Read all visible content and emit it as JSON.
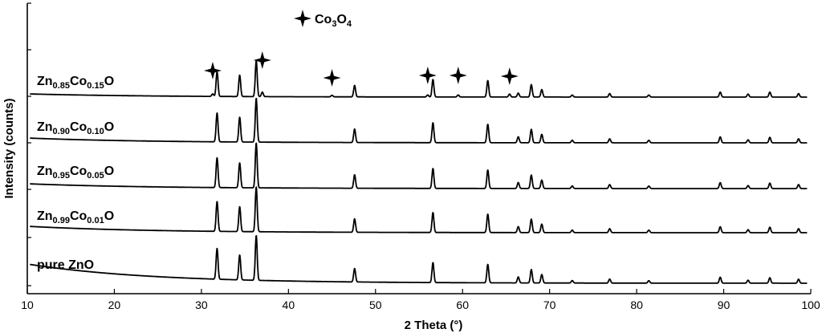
{
  "chart_data": {
    "type": "line",
    "title": "",
    "xlabel": "2 Theta  (°)",
    "ylabel": "Intensity  (counts)",
    "xlim": [
      10,
      100
    ],
    "x_ticks": [
      10,
      20,
      30,
      40,
      50,
      60,
      70,
      80,
      90,
      100
    ],
    "y_ticks": "none (stacked, offset patterns)",
    "grid": false,
    "legend": {
      "position": "top-center",
      "marker": "four-pointed-star",
      "label_parts": [
        {
          "t": "Co",
          "sub": false
        },
        {
          "t": "3",
          "sub": true
        },
        {
          "t": "O",
          "sub": false
        },
        {
          "t": "4",
          "sub": true
        }
      ]
    },
    "co3o4_peaks_2theta": [
      31.3,
      37.0,
      45.0,
      56.0,
      59.5,
      65.4
    ],
    "series": [
      {
        "name": "pure ZnO",
        "label_parts": [
          {
            "t": "pure ZnO",
            "sub": false
          }
        ],
        "peaks": [
          {
            "x": 31.8,
            "h": 0.62
          },
          {
            "x": 34.4,
            "h": 0.5
          },
          {
            "x": 36.3,
            "h": 0.9
          },
          {
            "x": 47.6,
            "h": 0.27
          },
          {
            "x": 56.6,
            "h": 0.4
          },
          {
            "x": 62.9,
            "h": 0.37
          },
          {
            "x": 66.4,
            "h": 0.12
          },
          {
            "x": 67.9,
            "h": 0.27
          },
          {
            "x": 69.1,
            "h": 0.17
          },
          {
            "x": 72.6,
            "h": 0.05
          },
          {
            "x": 76.9,
            "h": 0.08
          },
          {
            "x": 81.4,
            "h": 0.05
          },
          {
            "x": 89.6,
            "h": 0.12
          },
          {
            "x": 92.8,
            "h": 0.06
          },
          {
            "x": 95.3,
            "h": 0.11
          },
          {
            "x": 98.6,
            "h": 0.08
          }
        ]
      },
      {
        "name": "Zn0.99Co0.01O",
        "label_parts": [
          {
            "t": "Zn",
            "sub": false
          },
          {
            "t": "0.99",
            "sub": true
          },
          {
            "t": "Co",
            "sub": false
          },
          {
            "t": "0.01",
            "sub": true
          },
          {
            "t": "O",
            "sub": false
          }
        ],
        "peaks": [
          {
            "x": 31.8,
            "h": 0.6
          },
          {
            "x": 34.4,
            "h": 0.5
          },
          {
            "x": 36.3,
            "h": 0.9
          },
          {
            "x": 47.6,
            "h": 0.27
          },
          {
            "x": 56.6,
            "h": 0.4
          },
          {
            "x": 62.9,
            "h": 0.37
          },
          {
            "x": 66.4,
            "h": 0.12
          },
          {
            "x": 67.9,
            "h": 0.27
          },
          {
            "x": 69.1,
            "h": 0.17
          },
          {
            "x": 72.6,
            "h": 0.05
          },
          {
            "x": 76.9,
            "h": 0.08
          },
          {
            "x": 81.4,
            "h": 0.05
          },
          {
            "x": 89.6,
            "h": 0.12
          },
          {
            "x": 92.8,
            "h": 0.06
          },
          {
            "x": 95.3,
            "h": 0.11
          },
          {
            "x": 98.6,
            "h": 0.08
          }
        ]
      },
      {
        "name": "Zn0.95Co0.05O",
        "label_parts": [
          {
            "t": "Zn",
            "sub": false
          },
          {
            "t": "0.95",
            "sub": true
          },
          {
            "t": "Co",
            "sub": false
          },
          {
            "t": "0.05",
            "sub": true
          },
          {
            "t": "O",
            "sub": false
          }
        ],
        "peaks": [
          {
            "x": 31.8,
            "h": 0.6
          },
          {
            "x": 34.4,
            "h": 0.5
          },
          {
            "x": 36.3,
            "h": 0.9
          },
          {
            "x": 47.6,
            "h": 0.27
          },
          {
            "x": 56.6,
            "h": 0.4
          },
          {
            "x": 62.9,
            "h": 0.37
          },
          {
            "x": 66.4,
            "h": 0.12
          },
          {
            "x": 67.9,
            "h": 0.27
          },
          {
            "x": 69.1,
            "h": 0.17
          },
          {
            "x": 72.6,
            "h": 0.05
          },
          {
            "x": 76.9,
            "h": 0.08
          },
          {
            "x": 81.4,
            "h": 0.05
          },
          {
            "x": 89.6,
            "h": 0.12
          },
          {
            "x": 92.8,
            "h": 0.06
          },
          {
            "x": 95.3,
            "h": 0.11
          },
          {
            "x": 98.6,
            "h": 0.08
          }
        ]
      },
      {
        "name": "Zn0.90Co0.10O",
        "label_parts": [
          {
            "t": "Zn",
            "sub": false
          },
          {
            "t": "0.90",
            "sub": true
          },
          {
            "t": "Co",
            "sub": false
          },
          {
            "t": "0.10",
            "sub": true
          },
          {
            "t": "O",
            "sub": false
          }
        ],
        "peaks": [
          {
            "x": 31.8,
            "h": 0.58
          },
          {
            "x": 34.4,
            "h": 0.5
          },
          {
            "x": 36.3,
            "h": 0.88
          },
          {
            "x": 47.6,
            "h": 0.27
          },
          {
            "x": 56.6,
            "h": 0.4
          },
          {
            "x": 62.9,
            "h": 0.37
          },
          {
            "x": 66.4,
            "h": 0.12
          },
          {
            "x": 67.9,
            "h": 0.27
          },
          {
            "x": 69.1,
            "h": 0.17
          },
          {
            "x": 72.6,
            "h": 0.05
          },
          {
            "x": 76.9,
            "h": 0.08
          },
          {
            "x": 81.4,
            "h": 0.05
          },
          {
            "x": 89.6,
            "h": 0.12
          },
          {
            "x": 92.8,
            "h": 0.06
          },
          {
            "x": 95.3,
            "h": 0.11
          },
          {
            "x": 98.6,
            "h": 0.08
          }
        ]
      },
      {
        "name": "Zn0.85Co0.15O",
        "label_parts": [
          {
            "t": "Zn",
            "sub": false
          },
          {
            "t": "0.85",
            "sub": true
          },
          {
            "t": "Co",
            "sub": false
          },
          {
            "t": "0.15",
            "sub": true
          },
          {
            "t": "O",
            "sub": false
          }
        ],
        "peaks": [
          {
            "x": 31.3,
            "h": 0.05
          },
          {
            "x": 31.8,
            "h": 0.5
          },
          {
            "x": 34.4,
            "h": 0.43
          },
          {
            "x": 36.3,
            "h": 0.72
          },
          {
            "x": 37.0,
            "h": 0.09
          },
          {
            "x": 45.0,
            "h": 0.03
          },
          {
            "x": 47.6,
            "h": 0.23
          },
          {
            "x": 56.0,
            "h": 0.04
          },
          {
            "x": 56.6,
            "h": 0.35
          },
          {
            "x": 59.5,
            "h": 0.04
          },
          {
            "x": 62.9,
            "h": 0.33
          },
          {
            "x": 65.4,
            "h": 0.06
          },
          {
            "x": 66.4,
            "h": 0.08
          },
          {
            "x": 67.9,
            "h": 0.25
          },
          {
            "x": 69.1,
            "h": 0.15
          },
          {
            "x": 72.6,
            "h": 0.04
          },
          {
            "x": 76.9,
            "h": 0.07
          },
          {
            "x": 81.4,
            "h": 0.04
          },
          {
            "x": 89.6,
            "h": 0.1
          },
          {
            "x": 92.8,
            "h": 0.06
          },
          {
            "x": 95.3,
            "h": 0.1
          },
          {
            "x": 98.6,
            "h": 0.07
          }
        ]
      }
    ]
  }
}
